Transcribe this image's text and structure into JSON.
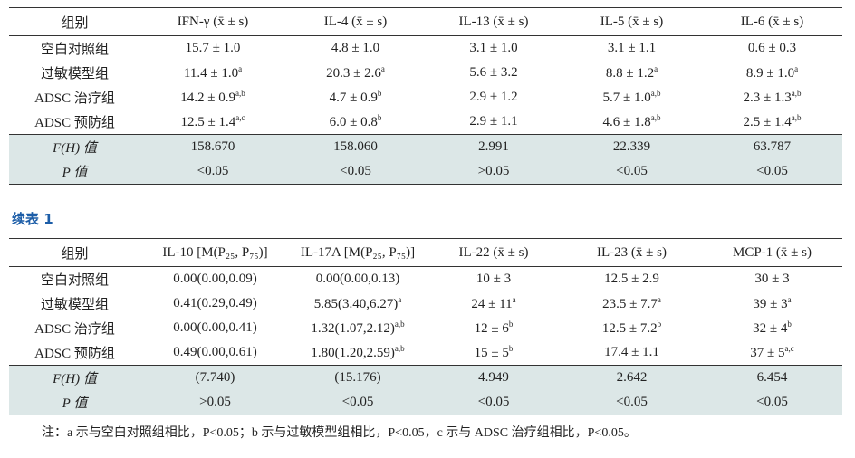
{
  "table1": {
    "header": [
      "组别",
      "IFN-γ (x̄ ± s)",
      "IL-4 (x̄ ± s)",
      "IL-13 (x̄ ± s)",
      "IL-5 (x̄ ± s)",
      "IL-6 (x̄ ± s)"
    ],
    "rows": [
      [
        "空白对照组",
        "15.7 ± 1.0",
        "4.8 ± 1.0",
        "3.1 ± 1.0",
        "3.1 ± 1.1",
        "0.6 ± 0.3"
      ],
      [
        "过敏模型组",
        {
          "text": "11.4 ± 1.0",
          "sup": "a"
        },
        {
          "text": "20.3 ± 2.6",
          "sup": "a"
        },
        "5.6 ± 3.2",
        {
          "text": "8.8 ± 1.2",
          "sup": "a"
        },
        {
          "text": "8.9 ± 1.0",
          "sup": "a"
        }
      ],
      [
        "ADSC 治疗组",
        {
          "text": "14.2 ± 0.9",
          "sup": "a,b"
        },
        {
          "text": "4.7 ± 0.9",
          "sup": "b"
        },
        "2.9 ± 1.2",
        {
          "text": "5.7 ± 1.0",
          "sup": "a,b"
        },
        {
          "text": "2.3 ± 1.3",
          "sup": "a,b"
        }
      ],
      [
        "ADSC 预防组",
        {
          "text": "12.5 ± 1.4",
          "sup": "a,c"
        },
        {
          "text": "6.0 ± 0.8",
          "sup": "b"
        },
        "2.9 ± 1.1",
        {
          "text": "4.6 ± 1.8",
          "sup": "a,b"
        },
        {
          "text": "2.5 ± 1.4",
          "sup": "a,b"
        }
      ]
    ],
    "stats": [
      [
        "F(H) 值",
        "158.670",
        "158.060",
        "2.991",
        "22.339",
        "63.787"
      ],
      [
        "P 值",
        "<0.05",
        "<0.05",
        ">0.05",
        "<0.05",
        "<0.05"
      ]
    ]
  },
  "continued_label": "续表 1",
  "table2": {
    "header": [
      "组别",
      "IL-10 [M(P₂₅, P₇₅)]",
      "IL-17A [M(P₂₅, P₇₅)]",
      "IL-22 (x̄ ± s)",
      "IL-23 (x̄ ± s)",
      "MCP-1 (x̄ ± s)"
    ],
    "rows": [
      [
        "空白对照组",
        "0.00(0.00,0.09)",
        "0.00(0.00,0.13)",
        "10 ± 3",
        "12.5 ± 2.9",
        "30 ± 3"
      ],
      [
        "过敏模型组",
        "0.41(0.29,0.49)",
        {
          "text": "5.85(3.40,6.27)",
          "sup": "a"
        },
        {
          "text": "24 ± 11",
          "sup": "a"
        },
        {
          "text": "23.5 ± 7.7",
          "sup": "a"
        },
        {
          "text": "39 ± 3",
          "sup": "a"
        }
      ],
      [
        "ADSC 治疗组",
        "0.00(0.00,0.41)",
        {
          "text": "1.32(1.07,2.12)",
          "sup": "a,b"
        },
        {
          "text": "12 ± 6",
          "sup": "b"
        },
        {
          "text": "12.5 ± 7.2",
          "sup": "b"
        },
        {
          "text": "32 ± 4",
          "sup": "b"
        }
      ],
      [
        "ADSC 预防组",
        "0.49(0.00,0.61)",
        {
          "text": "1.80(1.20,2.59)",
          "sup": "a,b"
        },
        {
          "text": "15 ± 5",
          "sup": "b"
        },
        "17.4 ± 1.1",
        {
          "text": "37 ± 5",
          "sup": "a,c"
        }
      ]
    ],
    "stats": [
      [
        "F(H) 值",
        "(7.740)",
        "(15.176)",
        "4.949",
        "2.642",
        "6.454"
      ],
      [
        "P 值",
        ">0.05",
        "<0.05",
        "<0.05",
        "<0.05",
        "<0.05"
      ]
    ]
  },
  "footnote": "注：a 示与空白对照组相比，P<0.05；b 示与过敏模型组相比，P<0.05，c 示与 ADSC 治疗组相比，P<0.05。"
}
